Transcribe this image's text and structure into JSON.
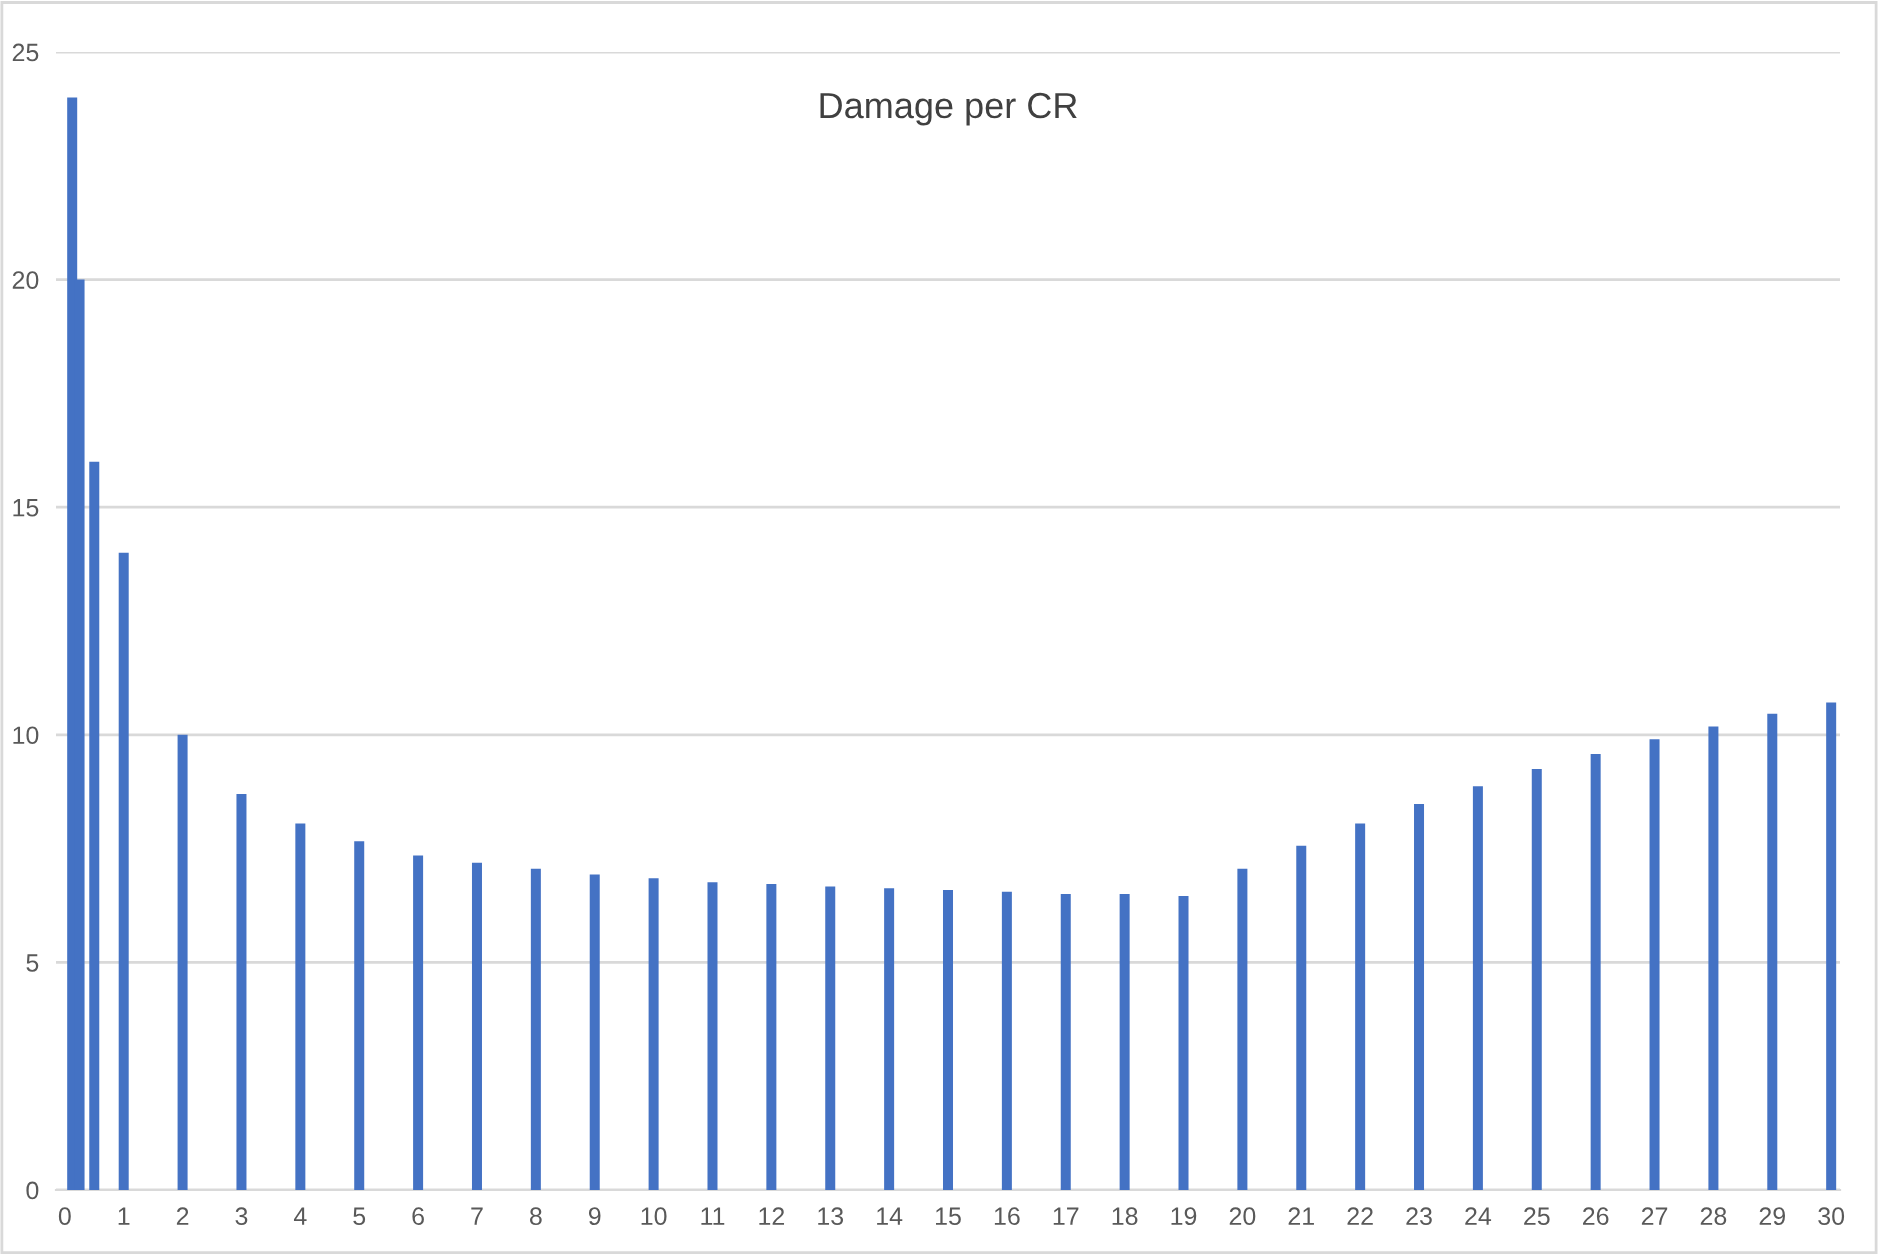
{
  "chart_data": {
    "type": "bar",
    "title": "Damage per CR",
    "x": [
      0.125,
      0.25,
      0.5,
      1,
      2,
      3,
      4,
      5,
      6,
      7,
      8,
      9,
      10,
      11,
      12,
      13,
      14,
      15,
      16,
      17,
      18,
      19,
      20,
      21,
      22,
      23,
      24,
      25,
      26,
      27,
      28,
      29,
      30
    ],
    "values": [
      24,
      20,
      16,
      14,
      10,
      8.7,
      8.05,
      7.66,
      7.35,
      7.19,
      7.06,
      6.93,
      6.85,
      6.76,
      6.72,
      6.67,
      6.63,
      6.59,
      6.55,
      6.5,
      6.5,
      6.46,
      7.06,
      7.56,
      8.05,
      8.48,
      8.87,
      9.25,
      9.58,
      9.9,
      10.18,
      10.46,
      10.71
    ],
    "color": "#4472c4",
    "xlim": [
      -0.15,
      30.15
    ],
    "xticks": [
      0,
      1,
      2,
      3,
      4,
      5,
      6,
      7,
      8,
      9,
      10,
      11,
      12,
      13,
      14,
      15,
      16,
      17,
      18,
      19,
      20,
      21,
      22,
      23,
      24,
      25,
      26,
      27,
      28,
      29,
      30
    ],
    "ylim": [
      0,
      25
    ],
    "yticks": [
      0,
      5,
      10,
      15,
      20,
      25
    ],
    "grid": "y",
    "legend": false
  }
}
